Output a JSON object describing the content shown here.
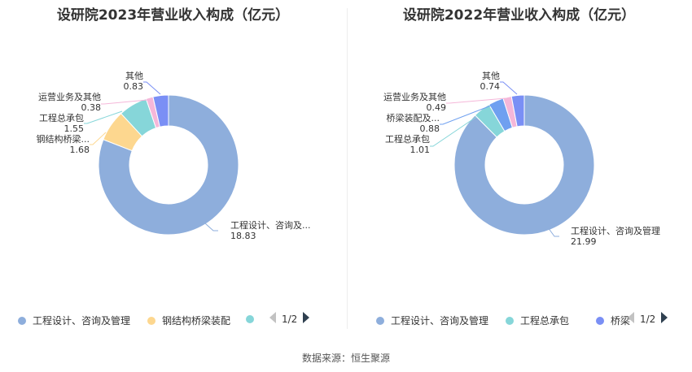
{
  "source_text": "数据来源：恒生聚源",
  "chart_data": [
    {
      "type": "pie",
      "style": "donut",
      "title": "设研院2023年营业收入构成（亿元）",
      "slices": [
        {
          "label": "工程设计、咨询及...",
          "value": 18.83,
          "value_text": "18.83",
          "color": "#8eaedc"
        },
        {
          "label": "钢结构桥梁...",
          "value": 1.68,
          "value_text": "1.68",
          "color": "#fdd78f"
        },
        {
          "label": "工程总承包",
          "value": 1.55,
          "value_text": "1.55",
          "color": "#86d6d9"
        },
        {
          "label": "运营业务及其他",
          "value": 0.38,
          "value_text": "0.38",
          "color": "#f5b7d9"
        },
        {
          "label": "其他",
          "value": 0.83,
          "value_text": "0.83",
          "color": "#7a8ff5"
        }
      ],
      "legend": {
        "items": [
          {
            "label": "工程设计、咨询及管理",
            "color": "#8eaedc"
          },
          {
            "label": "钢结构桥梁装配",
            "color": "#fdd78f"
          },
          {
            "label": "",
            "color": "#86d6d9"
          }
        ],
        "page": "1/2"
      }
    },
    {
      "type": "pie",
      "style": "donut",
      "title": "设研院2022年营业收入构成（亿元）",
      "slices": [
        {
          "label": "工程设计、咨询及管理",
          "value": 21.99,
          "value_text": "21.99",
          "color": "#8eaedc"
        },
        {
          "label": "工程总承包",
          "value": 1.01,
          "value_text": "1.01",
          "color": "#86d6d9"
        },
        {
          "label": "桥梁装配及...",
          "value": 0.88,
          "value_text": "0.88",
          "color": "#6fa0f0"
        },
        {
          "label": "运营业务及其他",
          "value": 0.49,
          "value_text": "0.49",
          "color": "#f5b7d9"
        },
        {
          "label": "其他",
          "value": 0.74,
          "value_text": "0.74",
          "color": "#7a8ff5"
        }
      ],
      "legend": {
        "items": [
          {
            "label": "工程设计、咨询及管理",
            "color": "#8eaedc"
          },
          {
            "label": "工程总承包",
            "color": "#86d6d9"
          },
          {
            "label": "桥梁",
            "color": "#7a8ff5"
          }
        ],
        "page": "1/2"
      }
    }
  ]
}
